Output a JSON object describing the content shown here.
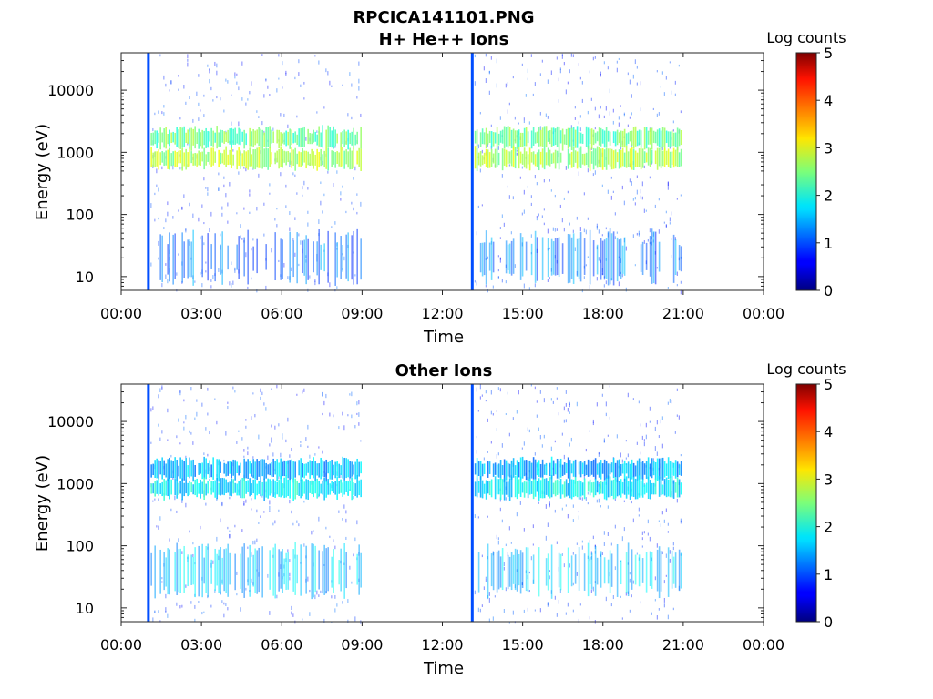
{
  "figure": {
    "title": "RPCICA141101.PNG"
  },
  "chart_data": [
    {
      "type": "heatmap",
      "title": "H+ He++ Ions",
      "xlabel": "Time",
      "ylabel": "Energy (eV)",
      "x_ticks": [
        "00:00",
        "03:00",
        "06:00",
        "09:00",
        "12:00",
        "15:00",
        "18:00",
        "21:00",
        "00:00"
      ],
      "x_range_hours": [
        0,
        24
      ],
      "y_scale": "log",
      "y_ticks": [
        "10",
        "100",
        "1000",
        "10000"
      ],
      "y_range_eV": [
        6,
        40000
      ],
      "colorbar": {
        "label": "Log counts",
        "ticks": [
          "0",
          "1",
          "2",
          "3",
          "4",
          "5"
        ],
        "range": [
          0,
          5
        ],
        "colormap": "jet"
      },
      "data_intervals_hours": [
        [
          1.0,
          9.0
        ],
        [
          13.1,
          20.9
        ]
      ],
      "features": [
        {
          "name": "band-high",
          "energy_eV": 1700,
          "log_counts": 2.4
        },
        {
          "name": "band-low",
          "energy_eV": 800,
          "log_counts": 2.7
        },
        {
          "name": "low-energy",
          "energy_eV": 20,
          "log_counts": 1.2
        }
      ]
    },
    {
      "type": "heatmap",
      "title": "Other Ions",
      "xlabel": "Time",
      "ylabel": "Energy (eV)",
      "x_ticks": [
        "00:00",
        "03:00",
        "06:00",
        "09:00",
        "12:00",
        "15:00",
        "18:00",
        "21:00",
        "00:00"
      ],
      "x_range_hours": [
        0,
        24
      ],
      "y_scale": "log",
      "y_ticks": [
        "10",
        "100",
        "1000",
        "10000"
      ],
      "y_range_eV": [
        6,
        40000
      ],
      "colorbar": {
        "label": "Log counts",
        "ticks": [
          "0",
          "1",
          "2",
          "3",
          "4",
          "5"
        ],
        "range": [
          0,
          5
        ],
        "colormap": "jet"
      },
      "data_intervals_hours": [
        [
          1.0,
          9.0
        ],
        [
          13.1,
          20.9
        ]
      ],
      "features": [
        {
          "name": "band-high",
          "energy_eV": 1700,
          "log_counts": 1.5
        },
        {
          "name": "band-low",
          "energy_eV": 850,
          "log_counts": 1.8
        },
        {
          "name": "low-energy",
          "energy_eV": 40,
          "log_counts": 1.6
        }
      ]
    }
  ]
}
